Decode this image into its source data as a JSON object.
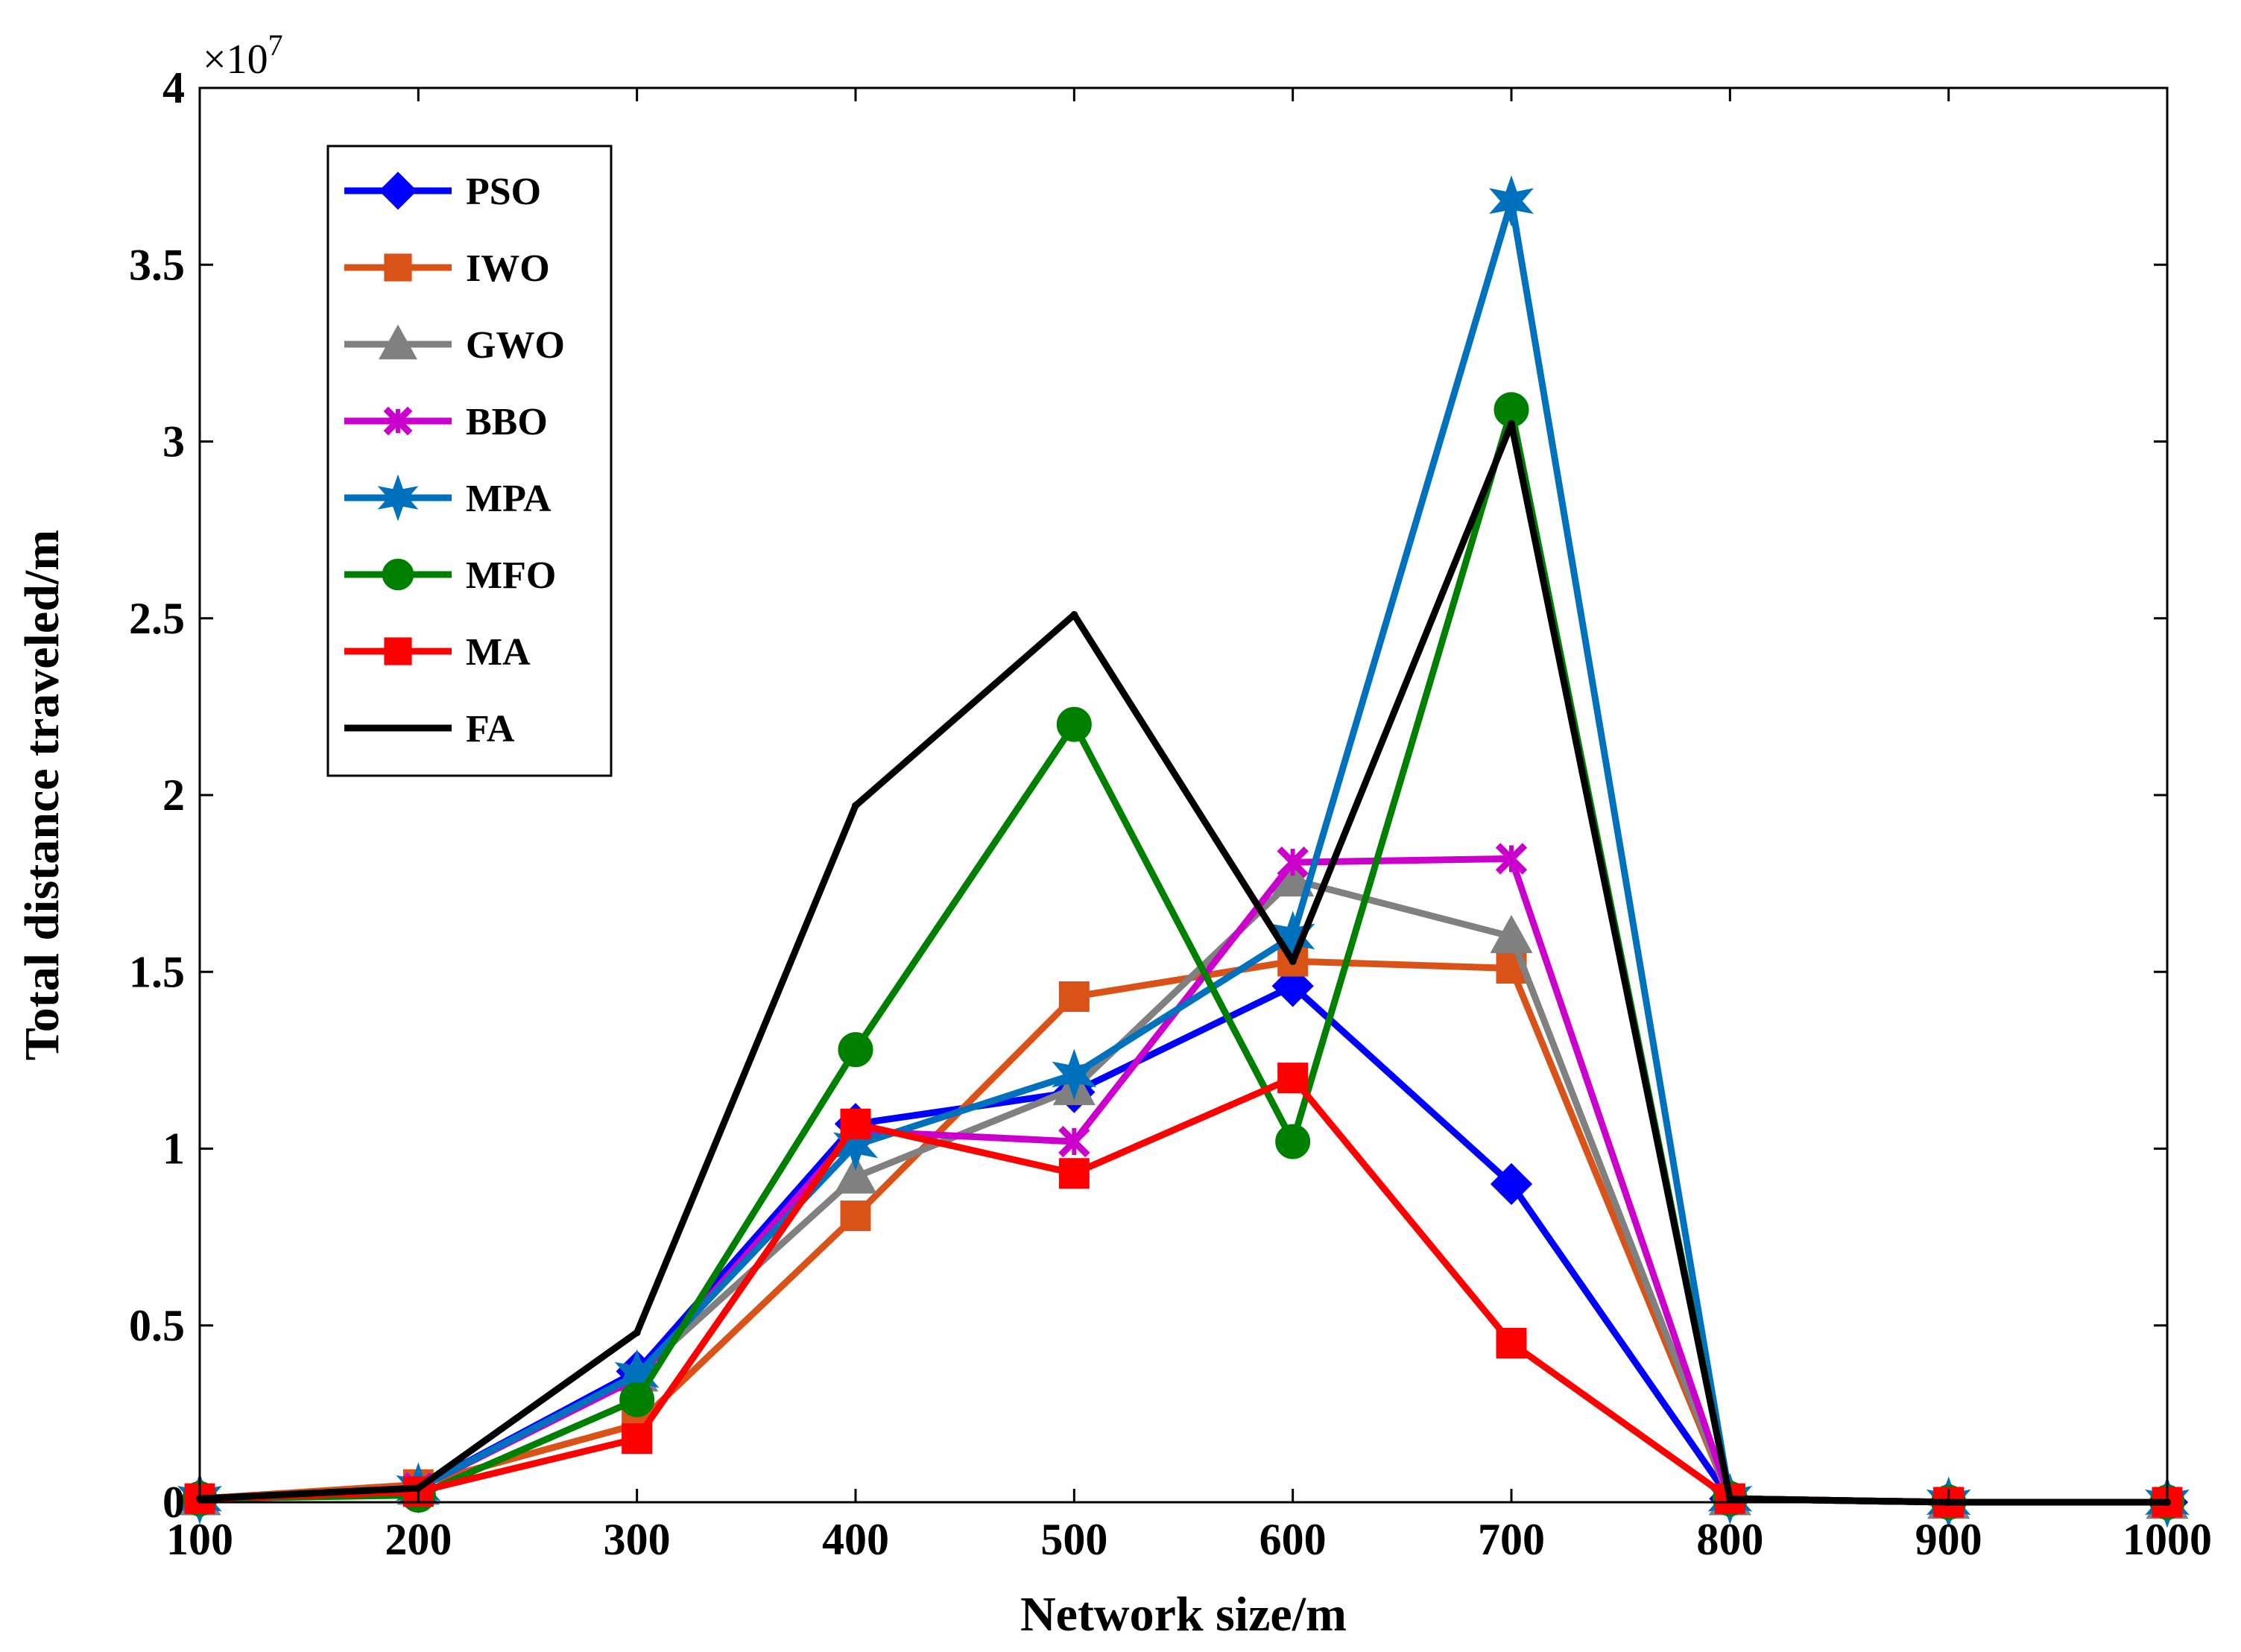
{
  "chart_data": {
    "type": "line",
    "title": "",
    "xlabel": "Network size/m",
    "ylabel": "Total distance traveled/m",
    "y_multiplier": "×10",
    "y_exponent": "7",
    "x": [
      100,
      200,
      300,
      400,
      500,
      600,
      700,
      800,
      900,
      1000
    ],
    "x_tick_labels": [
      "100",
      "200",
      "300",
      "400",
      "500",
      "600",
      "700",
      "800",
      "900",
      "1000"
    ],
    "xlim": [
      100,
      1000
    ],
    "ylim": [
      0,
      4
    ],
    "y_ticks": [
      0,
      0.5,
      1,
      1.5,
      2,
      2.5,
      3,
      3.5,
      4
    ],
    "y_tick_labels": [
      "0",
      "0.5",
      "1",
      "1.5",
      "2",
      "2.5",
      "3",
      "3.5",
      "4"
    ],
    "grid": false,
    "legend_position": "top-left",
    "series": [
      {
        "name": "PSO",
        "color": "#0000FF",
        "marker": "diamond",
        "values": [
          0.01,
          0.04,
          0.37,
          1.07,
          1.16,
          1.46,
          0.9,
          0.01,
          0.0,
          0.0
        ]
      },
      {
        "name": "IWO",
        "color": "#D95319",
        "marker": "square",
        "values": [
          0.01,
          0.05,
          0.22,
          0.81,
          1.43,
          1.53,
          1.51,
          0.01,
          0.0,
          0.0
        ]
      },
      {
        "name": "GWO",
        "color": "#808080",
        "marker": "triangle",
        "values": [
          0.01,
          0.04,
          0.36,
          0.92,
          1.17,
          1.76,
          1.6,
          0.01,
          0.0,
          0.0
        ]
      },
      {
        "name": "BBO",
        "color": "#CC00CC",
        "marker": "x",
        "values": [
          0.01,
          0.04,
          0.35,
          1.05,
          1.02,
          1.81,
          1.82,
          0.01,
          0.0,
          0.0
        ]
      },
      {
        "name": "MPA",
        "color": "#0072BD",
        "marker": "star",
        "values": [
          0.01,
          0.04,
          0.36,
          1.01,
          1.21,
          1.6,
          3.68,
          0.01,
          0.0,
          0.0
        ]
      },
      {
        "name": "MFO",
        "color": "#008000",
        "marker": "circle",
        "values": [
          0.01,
          0.02,
          0.29,
          1.28,
          2.2,
          1.02,
          3.09,
          0.01,
          0.0,
          0.0
        ]
      },
      {
        "name": "MA",
        "color": "#FF0000",
        "marker": "square",
        "values": [
          0.01,
          0.03,
          0.18,
          1.07,
          0.93,
          1.2,
          0.45,
          0.01,
          0.0,
          0.0
        ]
      },
      {
        "name": "FA",
        "color": "#000000",
        "marker": "dot",
        "values": [
          0.01,
          0.04,
          0.48,
          1.97,
          2.51,
          1.53,
          3.05,
          0.01,
          0.0,
          0.0
        ]
      }
    ]
  }
}
